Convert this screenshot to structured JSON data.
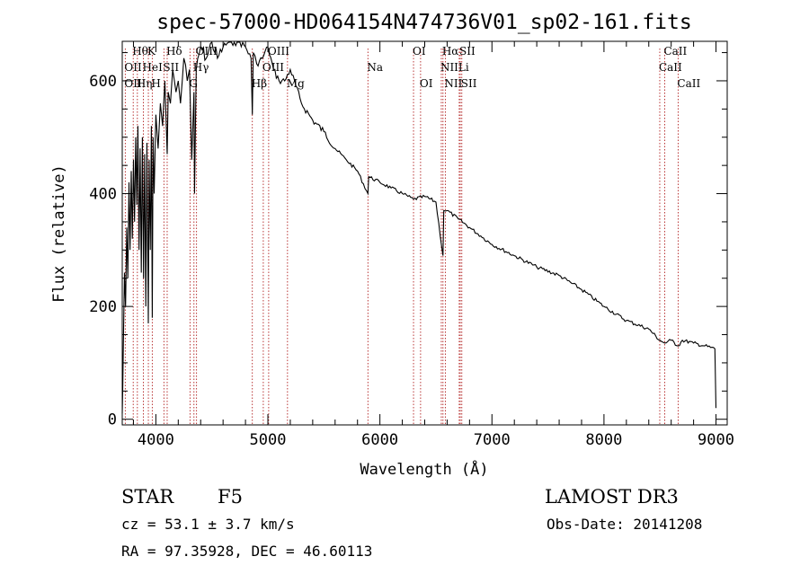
{
  "chart_data": {
    "type": "line",
    "title": "spec-57000-HD064154N474736V01_sp02-161.fits",
    "xlabel": "Wavelength (Å)",
    "ylabel": "Flux (relative)",
    "xlim": [
      3700,
      9100
    ],
    "ylim": [
      -10,
      670
    ],
    "xticks": [
      4000,
      5000,
      6000,
      7000,
      8000,
      9000
    ],
    "yticks": [
      0,
      200,
      400,
      600
    ],
    "grid": false,
    "series": [
      {
        "x": [
          3700,
          3705,
          3710,
          3720,
          3730,
          3740,
          3750,
          3760,
          3770,
          3780,
          3790,
          3800,
          3810,
          3820,
          3830,
          3840,
          3850,
          3860,
          3870,
          3880,
          3890,
          3900,
          3910,
          3920,
          3930,
          3933,
          3940,
          3950,
          3960,
          3968,
          3975,
          3985,
          4000,
          4020,
          4040,
          4060,
          4080,
          4101,
          4110,
          4130,
          4150,
          4180,
          4200,
          4220,
          4250,
          4280,
          4300,
          4320,
          4340,
          4345,
          4360,
          4400,
          4450,
          4500,
          4550,
          4600,
          4650,
          4700,
          4750,
          4800,
          4850,
          4861,
          4870,
          4900,
          4950,
          5000,
          5050,
          5100,
          5150,
          5200,
          5300,
          5400,
          5500,
          5600,
          5700,
          5800,
          5893,
          5900,
          6000,
          6100,
          6200,
          6300,
          6400,
          6500,
          6563,
          6570,
          6600,
          6700,
          6800,
          6900,
          7000,
          7200,
          7400,
          7600,
          7800,
          8000,
          8200,
          8400,
          8498,
          8542,
          8600,
          8662,
          8700,
          8800,
          8900,
          8990,
          9000
        ],
        "values": [
          10,
          60,
          130,
          260,
          200,
          340,
          250,
          420,
          300,
          440,
          320,
          460,
          350,
          500,
          380,
          520,
          300,
          480,
          260,
          500,
          250,
          470,
          200,
          490,
          240,
          170,
          460,
          300,
          520,
          180,
          500,
          400,
          540,
          480,
          560,
          520,
          600,
          470,
          580,
          560,
          620,
          580,
          600,
          560,
          640,
          600,
          620,
          460,
          580,
          400,
          620,
          660,
          640,
          680,
          640,
          660,
          700,
          680,
          700,
          660,
          640,
          540,
          650,
          630,
          640,
          660,
          620,
          600,
          600,
          620,
          560,
          530,
          510,
          480,
          460,
          440,
          400,
          430,
          420,
          410,
          400,
          390,
          395,
          385,
          290,
          370,
          370,
          355,
          340,
          325,
          310,
          290,
          270,
          255,
          230,
          200,
          175,
          160,
          140,
          135,
          140,
          130,
          140,
          135,
          130,
          125,
          20
        ]
      }
    ],
    "line_markers": [
      {
        "label": "Hθ",
        "x": 3798,
        "row": 0
      },
      {
        "label": "K",
        "x": 3933,
        "row": 0
      },
      {
        "label": "Hδ",
        "x": 4101,
        "row": 0
      },
      {
        "label": "OIII",
        "x": 4363,
        "row": 0
      },
      {
        "label": "OIII",
        "x": 5007,
        "row": 0
      },
      {
        "label": "OI",
        "x": 6300,
        "row": 0
      },
      {
        "label": "Hα",
        "x": 6563,
        "row": 0
      },
      {
        "label": "SII",
        "x": 6717,
        "row": 0
      },
      {
        "label": "CaII",
        "x": 8542,
        "row": 0
      },
      {
        "label": "OII",
        "x": 3727,
        "row": 1
      },
      {
        "label": "HeI",
        "x": 3889,
        "row": 1
      },
      {
        "label": "SII",
        "x": 4072,
        "row": 1
      },
      {
        "label": "Hγ",
        "x": 4340,
        "row": 1
      },
      {
        "label": "OIII",
        "x": 4959,
        "row": 1
      },
      {
        "label": "Na",
        "x": 5893,
        "row": 1
      },
      {
        "label": "NII",
        "x": 6548,
        "row": 1
      },
      {
        "label": "Li",
        "x": 6708,
        "row": 1
      },
      {
        "label": "CaII",
        "x": 8498,
        "row": 1
      },
      {
        "label": "OII",
        "x": 3727,
        "row": 2
      },
      {
        "label": "Hη",
        "x": 3835,
        "row": 2
      },
      {
        "label": "H",
        "x": 3968,
        "row": 2
      },
      {
        "label": "G",
        "x": 4305,
        "row": 2
      },
      {
        "label": "Hβ",
        "x": 4861,
        "row": 2
      },
      {
        "label": "Mg",
        "x": 5175,
        "row": 2
      },
      {
        "label": "OI",
        "x": 6363,
        "row": 2
      },
      {
        "label": "NII",
        "x": 6584,
        "row": 2
      },
      {
        "label": "SII",
        "x": 6731,
        "row": 2
      },
      {
        "label": "CaII",
        "x": 8662,
        "row": 2
      }
    ],
    "line_color": "#000000",
    "marker_color": "#b22222"
  },
  "info": {
    "object_class": "STAR",
    "subclass": "F5",
    "survey": "LAMOST DR3",
    "redshift": "cz = 53.1 ± 3.7 km/s",
    "obs_date": "Obs-Date: 20141208",
    "coordinates": "RA =  97.35928, DEC =  46.60113"
  }
}
